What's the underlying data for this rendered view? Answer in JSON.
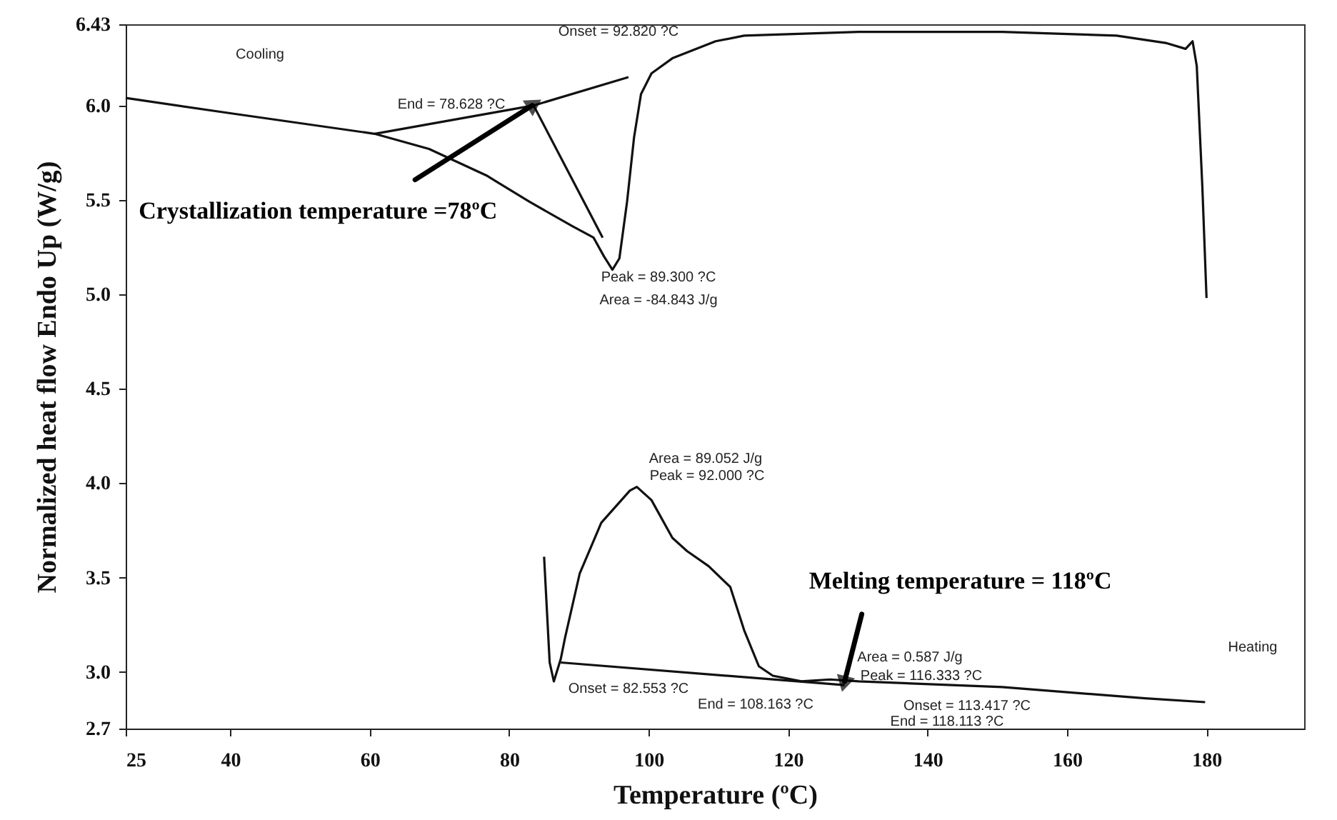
{
  "chart_data": {
    "type": "line",
    "xlabel": "Temperature (ºC)",
    "ylabel": "Normalized heat flow Endo Up (W/g)",
    "xlim": [
      25,
      194
    ],
    "ylim": [
      2.7,
      6.43
    ],
    "xticks": [
      25,
      40,
      60,
      80,
      100,
      120,
      140,
      160,
      180
    ],
    "yticks": [
      {
        "value": 2.7,
        "label": "2.7"
      },
      {
        "value": 3,
        "label": "3.0"
      },
      {
        "value": 3.5,
        "label": "3.5"
      },
      {
        "value": 4,
        "label": "4.0"
      },
      {
        "value": 4.5,
        "label": "4.5"
      },
      {
        "value": 5,
        "label": "5.0"
      },
      {
        "value": 5.5,
        "label": "5.5"
      },
      {
        "value": 6,
        "label": "6.0"
      },
      {
        "value": 6.43,
        "label": "6.43"
      }
    ],
    "series": [
      {
        "color": "#111111",
        "x": [
          25,
          39.8,
          60.7,
          68.5,
          76.7,
          82.9,
          89.1,
          92.1,
          93.6,
          94.8,
          95.8,
          96.9,
          97.9,
          98.9,
          100.4,
          103.4,
          109.6,
          113.7,
          130.1,
          150.7,
          167.1,
          174.3,
          177.0,
          178.0,
          178.6,
          179.4,
          180.0
        ],
        "values": [
          6.04,
          5.96,
          5.85,
          5.77,
          5.63,
          5.49,
          5.36,
          5.3,
          5.2,
          5.13,
          5.19,
          5.49,
          5.83,
          6.06,
          6.17,
          6.25,
          6.34,
          6.37,
          6.39,
          6.39,
          6.37,
          6.33,
          6.3,
          6.34,
          6.21,
          5.57,
          4.98
        ]
      },
      {
        "color": "#111111",
        "x": [
          60.7,
          83.5,
          97.1
        ],
        "values": [
          5.85,
          6.0,
          6.15
        ]
      },
      {
        "color": "#111111",
        "x": [
          83.5,
          93.4
        ],
        "values": [
          6.0,
          5.3
        ]
      },
      {
        "color": "#111111",
        "x": [
          85.0,
          85.8,
          86.4,
          87.4,
          88.0,
          90.1,
          93.2,
          97.3,
          98.3,
          100.4,
          103.4,
          105.5,
          108.6,
          111.7,
          113.7,
          115.8,
          117.8,
          121.9,
          126.0,
          130.1,
          150.7,
          171.2,
          179.8
        ],
        "values": [
          3.61,
          3.05,
          2.95,
          3.07,
          3.18,
          3.52,
          3.79,
          3.96,
          3.98,
          3.91,
          3.71,
          3.64,
          3.56,
          3.45,
          3.22,
          3.03,
          2.98,
          2.95,
          2.96,
          2.95,
          2.92,
          2.86,
          2.84
        ]
      },
      {
        "color": "#111111",
        "x": [
          87.4,
          128.1
        ],
        "values": [
          3.05,
          2.93
        ]
      }
    ],
    "annotations": [
      {
        "text": "Crystallization temperature =78ºC",
        "x": 83.3,
        "y": 6.0
      },
      {
        "text": "Melting temperature = 118ºC",
        "x": 128.1,
        "y": 2.95
      },
      "Cooling",
      "Onset = 92.820 ?C",
      "End = 78.628 ?C",
      "Peak = 89.300 ?C",
      "Area = -84.843 J/g",
      "Area = 89.052 J/g",
      "Peak = 92.000 ?C",
      "Area = 0.587 J/g",
      "Peak = 116.333 ?C",
      "Onset = 82.553 ?C",
      "End = 108.163 ?C",
      "Onset = 113.417 ?C",
      "End = 118.113 ?C",
      "Heating"
    ]
  }
}
